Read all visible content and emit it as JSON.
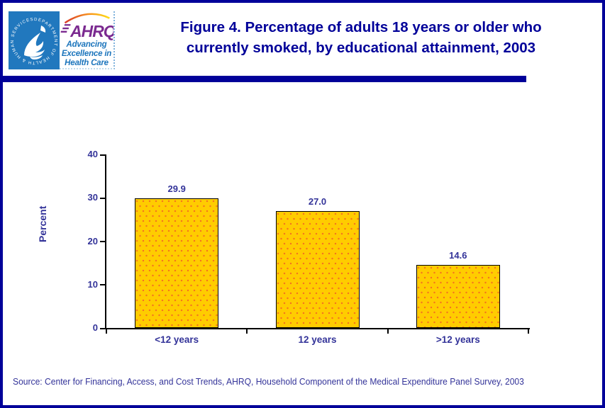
{
  "colors": {
    "page_border": "#000099",
    "title_text": "#000099",
    "chart_text": "#333399",
    "bar_fill": "#FFCC00",
    "bar_dots": "#F4731F",
    "bar_border": "#000000",
    "seal_background": "#2178BE",
    "ahrq_purple": "#7B2A90",
    "tagline_blue": "#1C75BC"
  },
  "header": {
    "logo": {
      "seal_text": "DEPARTMENT OF HEALTH & HUMAN SERVICES • USA",
      "acronym": "AHRQ",
      "tagline": [
        "Advancing",
        "Excellence in",
        "Health Care"
      ]
    },
    "title_line1": "Figure 4. Percentage of adults 18 years or older who",
    "title_line2": "currently smoked, by educational attainment, 2003"
  },
  "chart_data": {
    "type": "bar",
    "title": "Figure 4. Percentage of adults 18 years or older who currently smoked, by educational attainment, 2003",
    "categories": [
      "<12 years",
      "12 years",
      ">12 years"
    ],
    "values": [
      29.9,
      27.0,
      14.6
    ],
    "value_labels": [
      "29.9",
      "27.0",
      "14.6"
    ],
    "xlabel": "",
    "ylabel": "Percent",
    "ylim": [
      0,
      40
    ],
    "yticks": [
      0,
      10,
      20,
      30,
      40
    ],
    "grid": false,
    "legend": null
  },
  "footer": {
    "source": "Source: Center for Financing, Access, and Cost Trends, AHRQ, Household Component of the Medical Expenditure Panel Survey, 2003"
  }
}
